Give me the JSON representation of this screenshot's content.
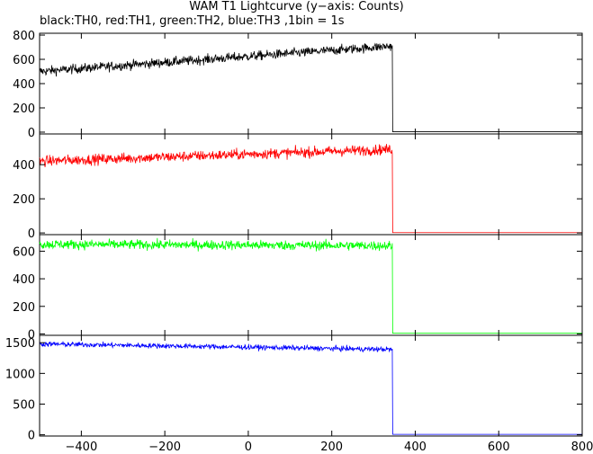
{
  "chart_data": {
    "type": "line",
    "title": "WAM T1 Lightcurve (y−axis: Counts)",
    "subtitle": "black:TH0, red:TH1, green:TH2, blue:TH3 ,1bin = 1s",
    "xlim": [
      -500,
      800
    ],
    "xticks": [
      "−400",
      "−200",
      "0",
      "200",
      "400",
      "600",
      "800"
    ],
    "xtick_values": [
      -400,
      -200,
      0,
      200,
      400,
      600,
      800
    ],
    "drop_x": 345,
    "bin": 1,
    "grid": false,
    "panels": [
      {
        "series": "TH0",
        "color": "#000000",
        "ylim": [
          -15,
          815
        ],
        "yticks": [
          0,
          200,
          400,
          600,
          800
        ],
        "ytick_labels": [
          "0",
          "200",
          "400",
          "600",
          "800"
        ],
        "trend": {
          "x": [
            -500,
            345
          ],
          "y": [
            500,
            710
          ]
        },
        "noise": 28,
        "after_drop": 3
      },
      {
        "series": "TH1",
        "color": "#ff0000",
        "ylim": [
          -10,
          580
        ],
        "yticks": [
          0,
          200,
          400
        ],
        "ytick_labels": [
          "0",
          "200",
          "400"
        ],
        "trend": {
          "x": [
            -500,
            345
          ],
          "y": [
            420,
            490
          ]
        },
        "noise": 22,
        "after_drop": 2
      },
      {
        "series": "TH2",
        "color": "#00ff00",
        "ylim": [
          -10,
          720
        ],
        "yticks": [
          0,
          200,
          400,
          600
        ],
        "ytick_labels": [
          "0",
          "200",
          "400",
          "600"
        ],
        "trend": {
          "x": [
            -500,
            345
          ],
          "y": [
            650,
            640
          ]
        },
        "noise": 25,
        "after_drop": 5
      },
      {
        "series": "TH3",
        "color": "#0000ff",
        "ylim": [
          -20,
          1620
        ],
        "yticks": [
          0,
          500,
          1000,
          1500
        ],
        "ytick_labels": [
          "0",
          "500",
          "1000",
          "1500"
        ],
        "trend": {
          "x": [
            -500,
            345
          ],
          "y": [
            1480,
            1390
          ]
        },
        "noise": 30,
        "after_drop": 8
      }
    ]
  }
}
